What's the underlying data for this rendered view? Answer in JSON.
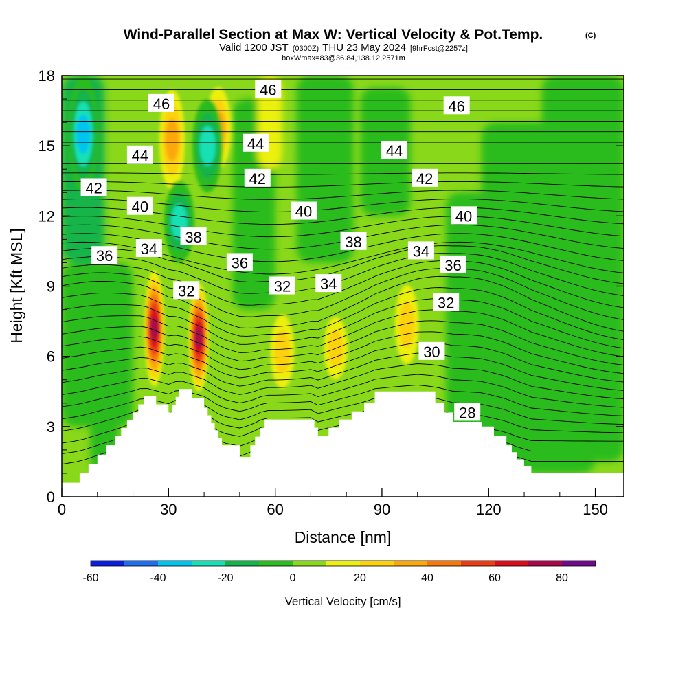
{
  "header": {
    "title": "Wind-Parallel Section at Max W: Vertical Velocity & Pot.Temp.",
    "copyright": "(C)",
    "subtitle_main_a": "Valid 1200 JST",
    "subtitle_small_a": "(0300Z)",
    "subtitle_main_b": "THU 23 May 2024",
    "subtitle_small_b": "[9hrFcst@2257z]",
    "subtitle_line3": "boxWmax=83@36.84,138.12,2571m"
  },
  "chart_data": {
    "type": "heatmap",
    "title": "Wind-Parallel Section at Max W: Vertical Velocity & Pot.Temp.",
    "xlabel": "Distance [nm]",
    "ylabel": "Height [Kft MSL]",
    "xlim": [
      0,
      158
    ],
    "ylim": [
      0,
      18
    ],
    "xticks": [
      0,
      30,
      60,
      90,
      120,
      150
    ],
    "yticks": [
      0,
      3,
      6,
      9,
      12,
      15,
      18
    ],
    "colorbar": {
      "label": "Vertical Velocity [cm/s]",
      "ticks": [
        -60,
        -40,
        -20,
        0,
        20,
        40,
        60,
        80
      ],
      "levels": [
        -60,
        -50,
        -40,
        -30,
        -20,
        -10,
        0,
        10,
        20,
        30,
        40,
        50,
        60,
        70,
        80,
        90
      ],
      "colors": [
        "#0a1ee0",
        "#1e6ef0",
        "#00c4f0",
        "#14e0b4",
        "#12b44a",
        "#2cbc1e",
        "#8ad81a",
        "#ecf010",
        "#fcd20a",
        "#fca80a",
        "#f8780a",
        "#ec3c14",
        "#dc0c1e",
        "#a8084a",
        "#6e0a8c"
      ]
    },
    "terrain_top_kft": [
      [
        0,
        0.6
      ],
      [
        5,
        1.0
      ],
      [
        10,
        1.8
      ],
      [
        15,
        2.6
      ],
      [
        20,
        3.6
      ],
      [
        23,
        4.3
      ],
      [
        30,
        3.6
      ],
      [
        33,
        4.6
      ],
      [
        40,
        3.8
      ],
      [
        45,
        2.2
      ],
      [
        50,
        1.7
      ],
      [
        53,
        2.2
      ],
      [
        57,
        3.3
      ],
      [
        65,
        3.3
      ],
      [
        70,
        3.3
      ],
      [
        72,
        2.6
      ],
      [
        78,
        3.3
      ],
      [
        85,
        4.0
      ],
      [
        88,
        4.5
      ],
      [
        100,
        4.5
      ],
      [
        105,
        4.0
      ],
      [
        110,
        3.2
      ],
      [
        118,
        3.0
      ],
      [
        125,
        2.2
      ],
      [
        128,
        1.6
      ],
      [
        132,
        1.0
      ],
      [
        158,
        1.0
      ]
    ],
    "velocity_features": [
      {
        "x": 26,
        "z_bottom": 4.4,
        "z_top": 10.0,
        "peak_cm_s": 83
      },
      {
        "x": 38.5,
        "z_bottom": 4.2,
        "z_top": 9.4,
        "peak_cm_s": 80
      },
      {
        "x": 31,
        "z_bottom": 12.5,
        "z_top": 18,
        "peak_cm_s": 35
      },
      {
        "x": 44,
        "z_bottom": 13.5,
        "z_top": 18,
        "peak_cm_s": 40
      },
      {
        "x": 62,
        "z_bottom": 4.0,
        "z_top": 8.4,
        "peak_cm_s": 30
      },
      {
        "x": 77,
        "z_bottom": 4.5,
        "z_top": 8.2,
        "peak_cm_s": 25
      },
      {
        "x": 97,
        "z_bottom": 5.0,
        "z_top": 9.7,
        "peak_cm_s": 28
      },
      {
        "x": 6,
        "z_bottom": 13,
        "z_top": 18,
        "peak_cm_s": -35
      },
      {
        "x": 33,
        "z_bottom": 10,
        "z_top": 13.5,
        "peak_cm_s": -25
      },
      {
        "x": 41,
        "z_bottom": 13,
        "z_top": 17,
        "peak_cm_s": -30
      }
    ],
    "theta_labels": [
      {
        "text": "46",
        "x": 28,
        "y": 16.8
      },
      {
        "text": "46",
        "x": 58,
        "y": 17.4
      },
      {
        "text": "46",
        "x": 111,
        "y": 16.7
      },
      {
        "text": "44",
        "x": 22,
        "y": 14.6
      },
      {
        "text": "44",
        "x": 54.5,
        "y": 15.1
      },
      {
        "text": "44",
        "x": 93.5,
        "y": 14.8
      },
      {
        "text": "42",
        "x": 9,
        "y": 13.2
      },
      {
        "text": "42",
        "x": 55,
        "y": 13.6
      },
      {
        "text": "42",
        "x": 102,
        "y": 13.6
      },
      {
        "text": "40",
        "x": 22,
        "y": 12.4
      },
      {
        "text": "40",
        "x": 68,
        "y": 12.2
      },
      {
        "text": "40",
        "x": 113,
        "y": 12.0
      },
      {
        "text": "38",
        "x": 37,
        "y": 11.1
      },
      {
        "text": "38",
        "x": 82,
        "y": 10.9
      },
      {
        "text": "36",
        "x": 12,
        "y": 10.3
      },
      {
        "text": "36",
        "x": 50,
        "y": 10.0
      },
      {
        "text": "36",
        "x": 110,
        "y": 9.9
      },
      {
        "text": "34",
        "x": 24.5,
        "y": 10.6
      },
      {
        "text": "34",
        "x": 75,
        "y": 9.1
      },
      {
        "text": "34",
        "x": 101,
        "y": 10.5
      },
      {
        "text": "32",
        "x": 35,
        "y": 8.8
      },
      {
        "text": "32",
        "x": 62,
        "y": 9.0
      },
      {
        "text": "32",
        "x": 108,
        "y": 8.3
      },
      {
        "text": "30",
        "x": 104,
        "y": 6.2
      },
      {
        "text": "28",
        "x": 114,
        "y": 3.6
      }
    ]
  }
}
